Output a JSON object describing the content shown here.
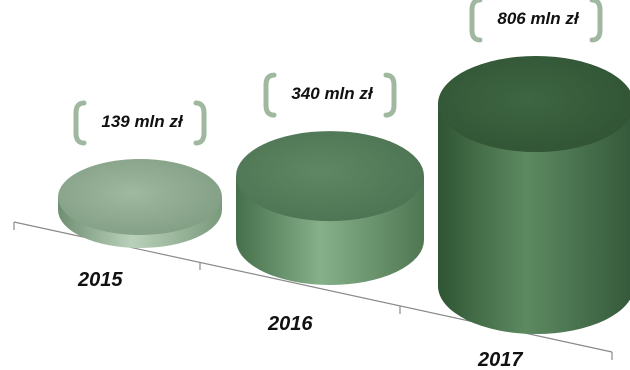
{
  "chart_data": {
    "type": "bar",
    "style": "3d-cylinder",
    "categories": [
      "2015",
      "2016",
      "2017"
    ],
    "values": [
      139,
      340,
      806
    ],
    "data_labels": [
      "139 mln zł",
      "340 mln zł",
      "806 mln zł"
    ],
    "unit": "mln zł",
    "title": "",
    "xlabel": "",
    "ylabel": "",
    "grid": false,
    "legend": "none",
    "colors": [
      "#9ab59b",
      "#6f9a73",
      "#4c7a4f"
    ]
  }
}
